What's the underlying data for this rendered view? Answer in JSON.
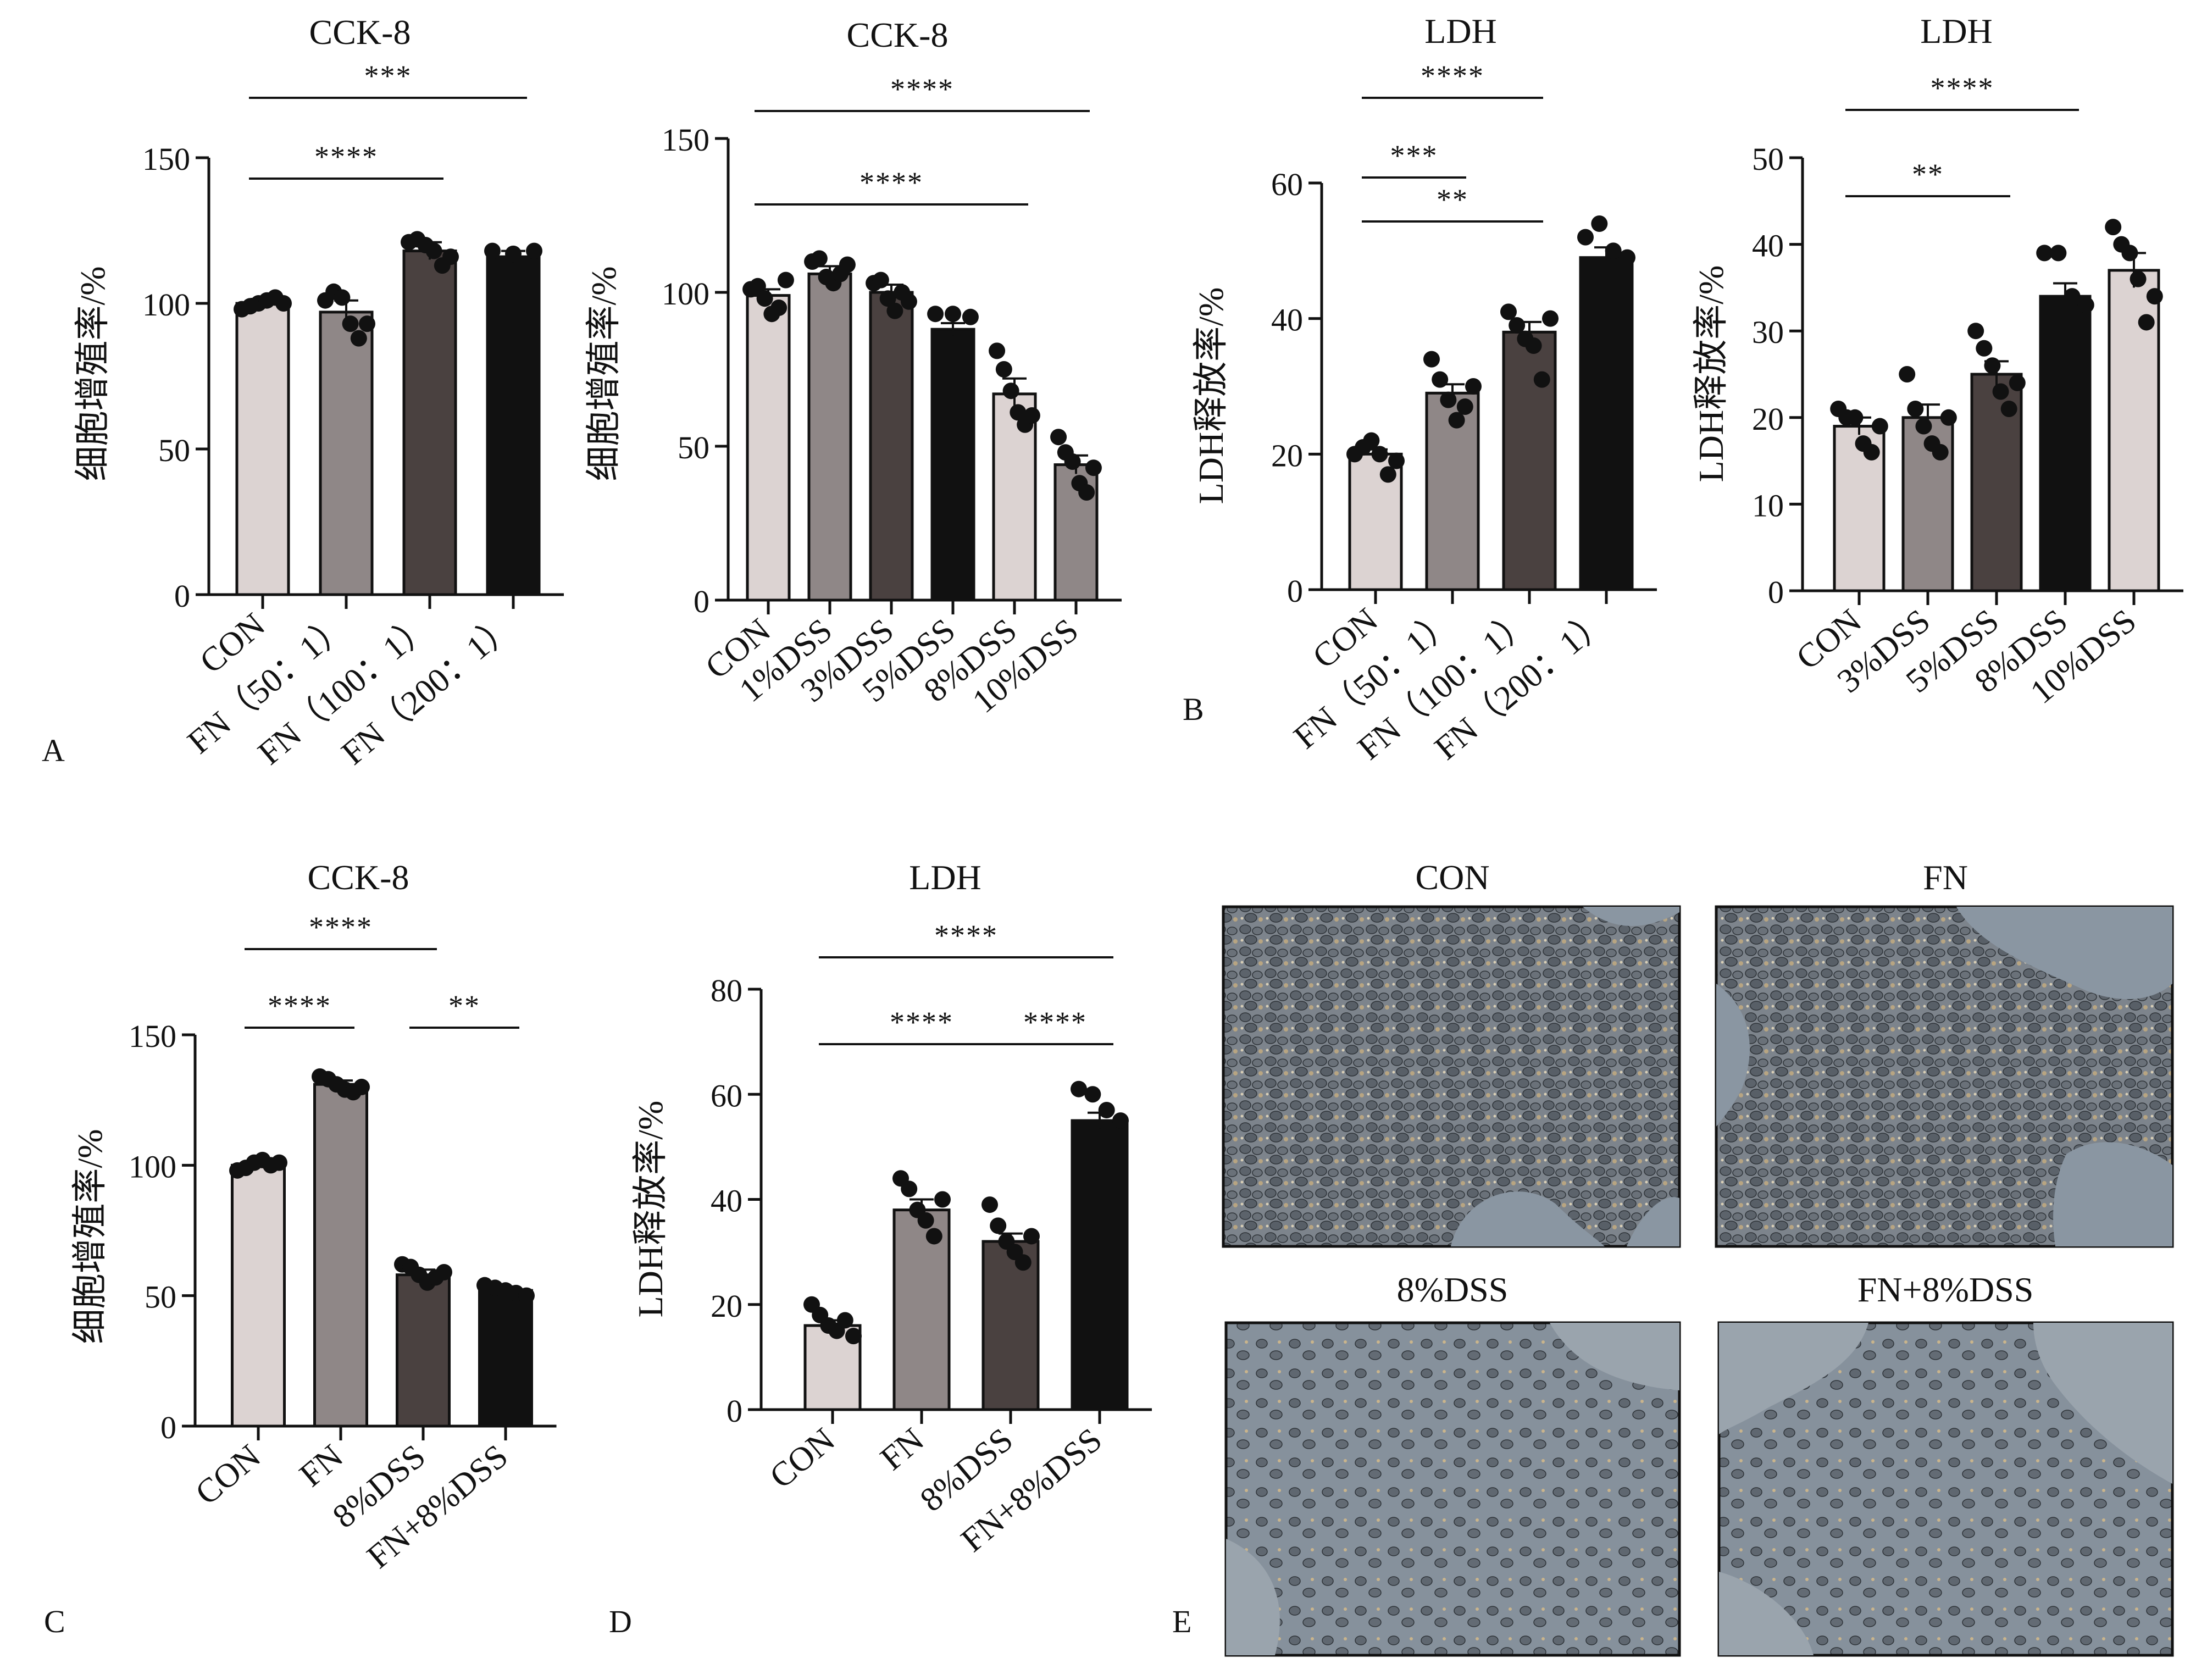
{
  "panels": [
    {
      "letter": "A"
    },
    {
      "letter": "B"
    },
    {
      "letter": "C"
    },
    {
      "letter": "D"
    },
    {
      "letter": "E"
    }
  ],
  "colors": {
    "light": "#dcd3d2",
    "mid": "#8f8787",
    "dark": "#4a4140",
    "black": "#111111",
    "dot": "#111111",
    "axis": "#111111"
  },
  "chart_data": [
    {
      "id": "A1",
      "panel": "A",
      "type": "bar",
      "title": "CCK-8",
      "xlabel": "",
      "ylabel": "细胞增殖率/%",
      "ylim": [
        0,
        150
      ],
      "yticks": [
        0,
        50,
        100,
        150
      ],
      "categories": [
        "CON",
        "FN（50：1）",
        "FN（100：1）",
        "FN（200：1）"
      ],
      "values": [
        100,
        97,
        118,
        116
      ],
      "sem": [
        1.5,
        4,
        3,
        2
      ],
      "colors": [
        "light",
        "mid",
        "dark",
        "black"
      ],
      "points": [
        [
          98,
          99,
          100,
          101,
          102,
          100
        ],
        [
          101,
          104,
          102,
          93,
          88,
          93
        ],
        [
          121,
          122,
          120,
          118,
          113,
          116
        ],
        [
          118,
          117,
          118
        ]
      ],
      "significance": [
        {
          "from": 0,
          "to": 2,
          "label": "****"
        },
        {
          "from": 0,
          "to": 3,
          "label": "***"
        }
      ]
    },
    {
      "id": "A2",
      "panel": "A",
      "type": "bar",
      "title": "CCK-8",
      "xlabel": "",
      "ylabel": "细胞增殖率/%",
      "ylim": [
        0,
        150
      ],
      "yticks": [
        0,
        50,
        100,
        150
      ],
      "categories": [
        "CON",
        "1%DSS",
        "3%DSS",
        "5%DSS",
        "8%DSS",
        "10%DSS"
      ],
      "values": [
        99,
        106,
        100,
        88,
        67,
        44
      ],
      "sem": [
        2,
        2.5,
        2.5,
        2,
        5,
        3
      ],
      "colors": [
        "light",
        "mid",
        "dark",
        "black",
        "light",
        "mid"
      ],
      "points": [
        [
          101,
          102,
          98,
          93,
          95,
          104
        ],
        [
          110,
          111,
          105,
          103,
          106,
          109
        ],
        [
          103,
          104,
          98,
          94,
          100,
          97
        ],
        [
          93,
          93,
          92
        ],
        [
          81,
          75,
          68,
          61,
          57,
          60
        ],
        [
          53,
          48,
          45,
          38,
          35,
          43
        ]
      ],
      "significance": [
        {
          "from": 0,
          "to": 4,
          "label": "****"
        },
        {
          "from": 0,
          "to": 5,
          "label": "****"
        }
      ]
    },
    {
      "id": "B1",
      "panel": "B",
      "type": "bar",
      "title": "LDH",
      "xlabel": "",
      "ylabel": "LDH释放率/%",
      "ylim": [
        0,
        60
      ],
      "yticks": [
        0,
        20,
        40,
        60
      ],
      "categories": [
        "CON",
        "FN（50：1）",
        "FN（100：1）",
        "FN（200：1）"
      ],
      "values": [
        20,
        29,
        38,
        49
      ],
      "sem": [
        0.7,
        1.3,
        1.5,
        1.5
      ],
      "colors": [
        "light",
        "mid",
        "dark",
        "black"
      ],
      "points": [
        [
          20,
          21,
          22,
          20,
          17,
          19
        ],
        [
          34,
          31,
          28,
          25,
          27,
          30
        ],
        [
          41,
          39,
          37,
          36,
          31,
          40
        ],
        [
          52,
          54,
          50,
          49
        ]
      ],
      "significance": [
        {
          "from": 0,
          "to": 1,
          "label": "***"
        },
        {
          "from": 0,
          "to": 2,
          "label": "****"
        },
        {
          "from": 0,
          "to": 2,
          "label": "**"
        }
      ]
    },
    {
      "id": "B2",
      "panel": "B",
      "type": "bar",
      "title": "LDH",
      "xlabel": "",
      "ylabel": "LDH释放率/%",
      "ylim": [
        0,
        50
      ],
      "yticks": [
        0,
        10,
        20,
        30,
        40,
        50
      ],
      "categories": [
        "CON",
        "3%DSS",
        "5%DSS",
        "8%DSS",
        "10%DSS"
      ],
      "values": [
        19,
        20,
        25,
        34,
        37
      ],
      "sem": [
        1,
        1.5,
        1.5,
        1.5,
        2
      ],
      "colors": [
        "light",
        "mid",
        "dark",
        "black",
        "light"
      ],
      "points": [
        [
          21,
          20,
          20,
          17,
          16,
          19
        ],
        [
          25,
          21,
          19,
          17,
          16,
          20
        ],
        [
          30,
          28,
          26,
          23,
          21,
          24
        ],
        [
          39,
          39,
          34,
          33
        ],
        [
          42,
          40,
          39,
          36,
          31,
          34
        ]
      ],
      "significance": [
        {
          "from": 0,
          "to": 2,
          "label": "**"
        },
        {
          "from": 0,
          "to": 3,
          "label": "****"
        }
      ]
    },
    {
      "id": "C",
      "panel": "C",
      "type": "bar",
      "title": "CCK-8",
      "xlabel": "",
      "ylabel": "细胞增殖率/%",
      "ylim": [
        0,
        150
      ],
      "yticks": [
        0,
        50,
        100,
        150
      ],
      "categories": [
        "CON",
        "FN",
        "8%DSS",
        "FN+8%DSS"
      ],
      "values": [
        100,
        131,
        58,
        52
      ],
      "sem": [
        1,
        1.5,
        2,
        1.5
      ],
      "colors": [
        "light",
        "mid",
        "dark",
        "black"
      ],
      "points": [
        [
          98,
          99,
          101,
          102,
          100,
          101
        ],
        [
          134,
          133,
          131,
          129,
          128,
          130
        ],
        [
          62,
          61,
          58,
          55,
          57,
          59
        ],
        [
          54,
          53,
          52,
          51,
          50
        ]
      ],
      "significance": [
        {
          "from": 0,
          "to": 1,
          "label": "****"
        },
        {
          "from": 0,
          "to": 2,
          "label": "****"
        },
        {
          "from": 2,
          "to": 3,
          "label": "**"
        }
      ]
    },
    {
      "id": "D",
      "panel": "D",
      "type": "bar",
      "title": "LDH",
      "xlabel": "",
      "ylabel": "LDH释放率/%",
      "ylim": [
        0,
        80
      ],
      "yticks": [
        0,
        20,
        40,
        60,
        80
      ],
      "categories": [
        "CON",
        "FN",
        "8%DSS",
        "FN+8%DSS"
      ],
      "values": [
        16,
        38,
        32,
        55
      ],
      "sem": [
        1,
        2,
        1.5,
        1.5
      ],
      "colors": [
        "light",
        "mid",
        "dark",
        "black"
      ],
      "points": [
        [
          20,
          18,
          16,
          15,
          17,
          14
        ],
        [
          44,
          42,
          38,
          36,
          33,
          40
        ],
        [
          39,
          35,
          32,
          30,
          28,
          33
        ],
        [
          61,
          60,
          57,
          55
        ]
      ],
      "significance": [
        {
          "from": 0,
          "to": 2,
          "label": "****"
        },
        {
          "from": 0,
          "to": 3,
          "label": "****"
        },
        {
          "from": 2,
          "to": 3,
          "label": "****"
        }
      ]
    }
  ],
  "micrographs": [
    {
      "title": "CON"
    },
    {
      "title": "FN"
    },
    {
      "title": "8%DSS"
    },
    {
      "title": "FN+8%DSS"
    }
  ]
}
